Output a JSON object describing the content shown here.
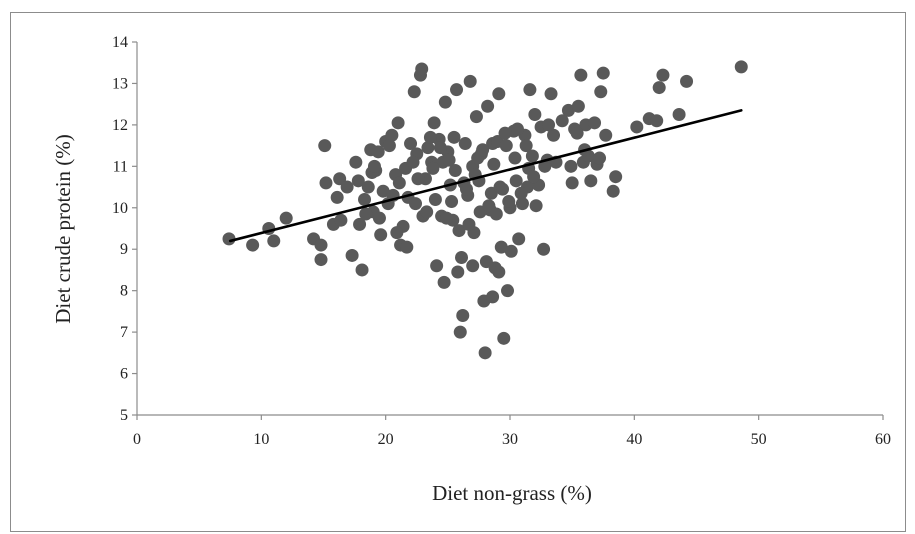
{
  "chart_data": {
    "type": "scatter",
    "xlabel": "Diet non-grass (%)",
    "ylabel": "Diet crude protein (%)",
    "xlim": [
      0,
      60
    ],
    "ylim": [
      5,
      14
    ],
    "xticks": [
      0,
      10,
      20,
      30,
      40,
      50,
      60
    ],
    "yticks": [
      5,
      6,
      7,
      8,
      9,
      10,
      11,
      12,
      13,
      14
    ],
    "grid": false,
    "colors": {
      "points": "#595959",
      "trendline": "#000000",
      "axis": "#8c8c8c"
    },
    "trendline": {
      "x": [
        7.5,
        48.6
      ],
      "y": [
        9.2,
        12.35
      ]
    },
    "series": [
      {
        "points": [
          [
            7.4,
            9.25
          ],
          [
            9.3,
            9.1
          ],
          [
            10.6,
            9.5
          ],
          [
            11.0,
            9.2
          ],
          [
            12.0,
            9.75
          ],
          [
            14.2,
            9.25
          ],
          [
            14.8,
            9.1
          ],
          [
            14.8,
            8.75
          ],
          [
            15.1,
            11.5
          ],
          [
            15.2,
            10.6
          ],
          [
            15.8,
            9.6
          ],
          [
            16.1,
            10.25
          ],
          [
            16.3,
            10.7
          ],
          [
            16.4,
            9.7
          ],
          [
            17.3,
            8.85
          ],
          [
            17.6,
            11.1
          ],
          [
            17.8,
            10.65
          ],
          [
            18.1,
            8.5
          ],
          [
            17.9,
            9.6
          ],
          [
            18.3,
            10.2
          ],
          [
            18.6,
            10.5
          ],
          [
            18.8,
            11.4
          ],
          [
            19.0,
            9.9
          ],
          [
            19.2,
            10.9
          ],
          [
            19.4,
            11.35
          ],
          [
            19.6,
            9.35
          ],
          [
            19.8,
            10.4
          ],
          [
            20.0,
            11.6
          ],
          [
            20.2,
            10.1
          ],
          [
            20.5,
            11.75
          ],
          [
            20.8,
            10.8
          ],
          [
            21.0,
            12.05
          ],
          [
            21.2,
            9.1
          ],
          [
            21.4,
            9.55
          ],
          [
            21.6,
            10.95
          ],
          [
            21.8,
            10.25
          ],
          [
            22.0,
            11.55
          ],
          [
            22.3,
            12.8
          ],
          [
            22.5,
            11.3
          ],
          [
            22.8,
            13.2
          ],
          [
            22.9,
            13.35
          ],
          [
            23.0,
            9.8
          ],
          [
            23.2,
            10.7
          ],
          [
            23.4,
            11.45
          ],
          [
            23.7,
            11.1
          ],
          [
            23.9,
            12.05
          ],
          [
            24.0,
            10.2
          ],
          [
            24.1,
            8.6
          ],
          [
            24.3,
            11.65
          ],
          [
            24.5,
            9.8
          ],
          [
            24.6,
            11.1
          ],
          [
            24.7,
            8.2
          ],
          [
            24.8,
            12.55
          ],
          [
            25.0,
            11.35
          ],
          [
            25.2,
            10.55
          ],
          [
            25.4,
            9.7
          ],
          [
            25.6,
            10.9
          ],
          [
            25.7,
            12.85
          ],
          [
            25.8,
            8.45
          ],
          [
            25.9,
            9.45
          ],
          [
            26.0,
            7.0
          ],
          [
            26.1,
            8.8
          ],
          [
            26.2,
            7.4
          ],
          [
            26.4,
            11.55
          ],
          [
            26.6,
            10.3
          ],
          [
            26.8,
            13.05
          ],
          [
            27.0,
            11.0
          ],
          [
            27.1,
            9.4
          ],
          [
            27.3,
            12.2
          ],
          [
            27.5,
            10.65
          ],
          [
            27.7,
            11.3
          ],
          [
            27.9,
            7.75
          ],
          [
            28.0,
            6.5
          ],
          [
            28.1,
            8.7
          ],
          [
            28.2,
            12.45
          ],
          [
            28.4,
            9.95
          ],
          [
            28.5,
            10.35
          ],
          [
            28.6,
            11.55
          ],
          [
            28.8,
            8.55
          ],
          [
            29.0,
            11.6
          ],
          [
            29.1,
            12.75
          ],
          [
            29.2,
            10.5
          ],
          [
            29.3,
            9.05
          ],
          [
            29.5,
            6.85
          ],
          [
            29.6,
            11.8
          ],
          [
            29.8,
            8.0
          ],
          [
            30.0,
            10.0
          ],
          [
            30.1,
            8.95
          ],
          [
            30.3,
            11.85
          ],
          [
            30.5,
            10.65
          ],
          [
            30.7,
            9.25
          ],
          [
            31.0,
            10.1
          ],
          [
            31.2,
            11.75
          ],
          [
            31.4,
            10.5
          ],
          [
            31.6,
            12.85
          ],
          [
            31.8,
            11.25
          ],
          [
            32.0,
            12.25
          ],
          [
            32.1,
            10.05
          ],
          [
            32.3,
            10.55
          ],
          [
            32.5,
            11.95
          ],
          [
            32.7,
            9.0
          ],
          [
            33.0,
            11.15
          ],
          [
            33.3,
            12.75
          ],
          [
            33.7,
            11.1
          ],
          [
            34.2,
            12.1
          ],
          [
            34.7,
            12.35
          ],
          [
            35.0,
            10.6
          ],
          [
            35.2,
            11.9
          ],
          [
            35.5,
            12.45
          ],
          [
            35.7,
            13.2
          ],
          [
            35.9,
            11.1
          ],
          [
            36.1,
            12.0
          ],
          [
            36.3,
            11.25
          ],
          [
            36.5,
            10.65
          ],
          [
            36.8,
            12.05
          ],
          [
            37.0,
            11.05
          ],
          [
            37.3,
            12.8
          ],
          [
            37.5,
            13.25
          ],
          [
            37.7,
            11.75
          ],
          [
            38.3,
            10.4
          ],
          [
            38.5,
            10.75
          ],
          [
            40.2,
            11.95
          ],
          [
            41.2,
            12.15
          ],
          [
            41.8,
            12.1
          ],
          [
            42.0,
            12.9
          ],
          [
            42.3,
            13.2
          ],
          [
            43.6,
            12.25
          ],
          [
            44.2,
            13.05
          ],
          [
            48.6,
            13.4
          ],
          [
            18.9,
            10.85
          ],
          [
            19.5,
            9.75
          ],
          [
            20.3,
            11.5
          ],
          [
            21.7,
            9.05
          ],
          [
            22.6,
            10.7
          ],
          [
            23.3,
            9.9
          ],
          [
            24.4,
            11.45
          ],
          [
            25.3,
            10.15
          ],
          [
            26.7,
            9.6
          ],
          [
            27.2,
            10.8
          ],
          [
            27.6,
            9.9
          ],
          [
            28.7,
            11.05
          ],
          [
            29.4,
            10.45
          ],
          [
            30.4,
            11.2
          ],
          [
            31.5,
            10.95
          ],
          [
            32.8,
            11.0
          ],
          [
            33.5,
            11.75
          ],
          [
            34.9,
            11.0
          ],
          [
            36.0,
            11.4
          ],
          [
            37.2,
            11.2
          ],
          [
            20.6,
            10.3
          ],
          [
            22.2,
            11.1
          ],
          [
            23.8,
            10.95
          ],
          [
            25.5,
            11.7
          ],
          [
            26.3,
            10.6
          ],
          [
            27.4,
            11.2
          ],
          [
            28.3,
            10.05
          ],
          [
            29.7,
            11.5
          ],
          [
            30.9,
            10.35
          ],
          [
            31.9,
            10.75
          ],
          [
            18.4,
            9.85
          ],
          [
            21.1,
            10.6
          ],
          [
            24.9,
            9.75
          ],
          [
            26.5,
            10.45
          ],
          [
            28.9,
            9.85
          ],
          [
            31.3,
            11.5
          ],
          [
            33.1,
            12.0
          ],
          [
            35.4,
            11.8
          ],
          [
            29.9,
            10.15
          ],
          [
            27.8,
            11.4
          ],
          [
            25.1,
            11.15
          ],
          [
            23.6,
            11.7
          ],
          [
            22.4,
            10.1
          ],
          [
            20.9,
            9.4
          ],
          [
            19.1,
            11.0
          ],
          [
            16.9,
            10.5
          ],
          [
            28.6,
            7.85
          ],
          [
            27.0,
            8.6
          ],
          [
            29.1,
            8.45
          ],
          [
            30.6,
            11.9
          ]
        ]
      }
    ]
  }
}
